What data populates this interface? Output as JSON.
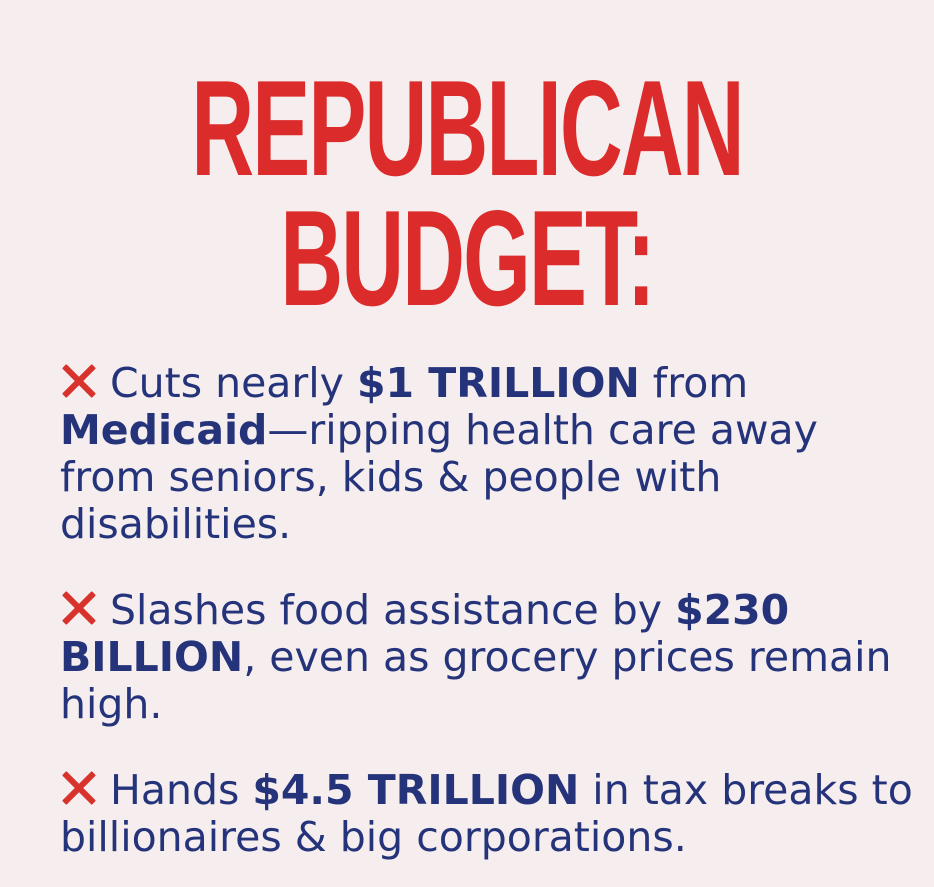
{
  "headline": {
    "line1": "REPUBLICAN",
    "line2": "BUDGET:"
  },
  "colors": {
    "background": "#f6eeee",
    "headline": "#dc2b2b",
    "body_text": "#25347a",
    "x_mark": "#d8322d"
  },
  "points": [
    {
      "icon": "x-mark-icon",
      "pre": "Cuts nearly ",
      "bold1": "$1 TRILLION",
      "mid": " from ",
      "bold2": "Medicaid",
      "post": "—ripping health care away from seniors, kids & people with disabilities."
    },
    {
      "icon": "x-mark-icon",
      "pre": "Slashes food assistance by ",
      "bold1": "$230 BILLION",
      "post": ", even as grocery prices remain high."
    },
    {
      "icon": "x-mark-icon",
      "pre": "Hands ",
      "bold1": "$4.5 TRILLION",
      "post": " in tax breaks to billionaires & big corporations."
    }
  ]
}
